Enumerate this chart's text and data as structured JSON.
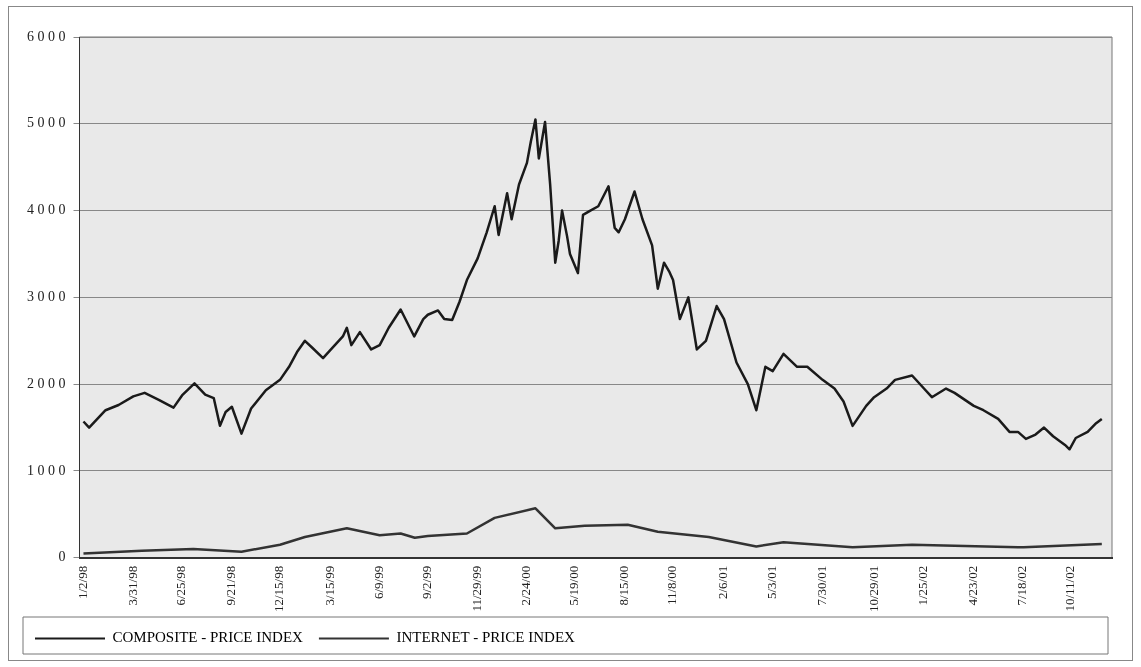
{
  "chart_data": {
    "type": "line",
    "ylim": [
      0,
      6000
    ],
    "yticks": [
      0,
      1000,
      2000,
      3000,
      4000,
      5000,
      6000
    ],
    "xlim": [
      "1997-12-26",
      "2002-12-23"
    ],
    "xticks": [
      {
        "value": "1998-01-02",
        "label": "1/2/98"
      },
      {
        "value": "1998-03-31",
        "label": "3/31/98"
      },
      {
        "value": "1998-06-25",
        "label": "6/25/98"
      },
      {
        "value": "1998-09-21",
        "label": "9/21/98"
      },
      {
        "value": "1998-12-15",
        "label": "12/15/98"
      },
      {
        "value": "1999-03-15",
        "label": "3/15/99"
      },
      {
        "value": "1999-06-09",
        "label": "6/9/99"
      },
      {
        "value": "1999-09-02",
        "label": "9/2/99"
      },
      {
        "value": "1999-11-29",
        "label": "11/29/99"
      },
      {
        "value": "2000-02-24",
        "label": "2/24/00"
      },
      {
        "value": "2000-05-19",
        "label": "5/19/00"
      },
      {
        "value": "2000-08-15",
        "label": "8/15/00"
      },
      {
        "value": "2000-11-08",
        "label": "11/8/00"
      },
      {
        "value": "2001-02-06",
        "label": "2/6/01"
      },
      {
        "value": "2001-05-03",
        "label": "5/3/01"
      },
      {
        "value": "2001-07-30",
        "label": "7/30/01"
      },
      {
        "value": "2001-10-29",
        "label": "10/29/01"
      },
      {
        "value": "2002-01-25",
        "label": "1/25/02"
      },
      {
        "value": "2002-04-23",
        "label": "4/23/02"
      },
      {
        "value": "2002-07-18",
        "label": "7/18/02"
      },
      {
        "value": "2002-10-11",
        "label": "10/11/02"
      }
    ],
    "grid": "y",
    "legend": "bottom",
    "marker": "none",
    "line_style": "solid",
    "series": [
      {
        "name": "COMPOSITE - PRICE INDEX",
        "color": "#1a1a1a",
        "x": [
          "1998-01-02",
          "1998-01-12",
          "1998-02-10",
          "1998-03-05",
          "1998-03-31",
          "1998-04-20",
          "1998-05-15",
          "1998-06-10",
          "1998-06-25",
          "1998-07-17",
          "1998-08-05",
          "1998-08-20",
          "1998-08-31",
          "1998-09-10",
          "1998-09-21",
          "1998-10-08",
          "1998-10-25",
          "1998-11-20",
          "1998-12-15",
          "1998-12-31",
          "1999-01-15",
          "1999-01-28",
          "1999-02-10",
          "1999-03-01",
          "1999-03-15",
          "1999-04-05",
          "1999-04-12",
          "1999-04-20",
          "1999-05-05",
          "1999-05-25",
          "1999-06-09",
          "1999-06-25",
          "1999-07-16",
          "1999-08-09",
          "1999-08-25",
          "1999-09-02",
          "1999-09-20",
          "1999-10-01",
          "1999-10-15",
          "1999-10-28",
          "1999-11-10",
          "1999-11-29",
          "1999-12-15",
          "1999-12-29",
          "2000-01-05",
          "2000-01-20",
          "2000-01-28",
          "2000-02-10",
          "2000-02-24",
          "2000-03-02",
          "2000-03-10",
          "2000-03-16",
          "2000-03-27",
          "2000-04-05",
          "2000-04-14",
          "2000-04-20",
          "2000-04-26",
          "2000-05-05",
          "2000-05-10",
          "2000-05-24",
          "2000-06-02",
          "2000-06-15",
          "2000-06-29",
          "2000-07-17",
          "2000-07-28",
          "2000-08-04",
          "2000-08-15",
          "2000-09-01",
          "2000-09-15",
          "2000-10-02",
          "2000-10-12",
          "2000-10-23",
          "2000-11-01",
          "2000-11-08",
          "2000-11-20",
          "2000-12-05",
          "2000-12-20",
          "2001-01-05",
          "2001-01-24",
          "2001-02-06",
          "2001-02-28",
          "2001-03-20",
          "2001-04-04",
          "2001-04-20",
          "2001-05-03",
          "2001-05-22",
          "2001-06-15",
          "2001-07-03",
          "2001-07-30",
          "2001-08-20",
          "2001-09-05",
          "2001-09-21",
          "2001-10-15",
          "2001-10-29",
          "2001-11-20",
          "2001-12-05",
          "2002-01-04",
          "2002-01-25",
          "2002-02-08",
          "2002-03-05",
          "2002-03-20",
          "2002-04-23",
          "2002-05-10",
          "2002-06-05",
          "2002-06-25",
          "2002-07-10",
          "2002-07-24",
          "2002-08-10",
          "2002-08-25",
          "2002-09-10",
          "2002-10-01",
          "2002-10-09",
          "2002-10-20",
          "2002-11-10",
          "2002-11-25",
          "2002-12-05"
        ],
        "values": [
          1570,
          1500,
          1700,
          1760,
          1860,
          1900,
          1820,
          1730,
          1870,
          2010,
          1880,
          1840,
          1520,
          1680,
          1740,
          1430,
          1720,
          1930,
          2050,
          2200,
          2380,
          2500,
          2420,
          2300,
          2400,
          2550,
          2650,
          2450,
          2600,
          2400,
          2450,
          2650,
          2860,
          2550,
          2750,
          2800,
          2850,
          2750,
          2740,
          2950,
          3200,
          3450,
          3750,
          4050,
          3720,
          4200,
          3900,
          4300,
          4550,
          4800,
          5050,
          4600,
          5020,
          4300,
          3400,
          3650,
          4000,
          3700,
          3500,
          3280,
          3950,
          4000,
          4050,
          4280,
          3800,
          3750,
          3900,
          4220,
          3900,
          3600,
          3100,
          3400,
          3300,
          3200,
          2750,
          3000,
          2400,
          2500,
          2900,
          2750,
          2250,
          2000,
          1700,
          2200,
          2150,
          2350,
          2200,
          2200,
          2050,
          1950,
          1800,
          1520,
          1750,
          1850,
          1950,
          2050,
          2100,
          1950,
          1850,
          1950,
          1900,
          1750,
          1700,
          1600,
          1450,
          1450,
          1370,
          1420,
          1500,
          1400,
          1300,
          1250,
          1380,
          1450,
          1550,
          1600
        ]
      },
      {
        "name": "INTERNET - PRICE INDEX",
        "color": "#333333",
        "x": [
          "1998-01-02",
          "1998-04-15",
          "1998-07-15",
          "1998-10-08",
          "1998-12-15",
          "1999-01-28",
          "1999-04-12",
          "1999-06-09",
          "1999-07-16",
          "1999-08-10",
          "1999-09-02",
          "1999-11-10",
          "1999-12-29",
          "2000-03-10",
          "2000-04-14",
          "2000-06-05",
          "2000-08-20",
          "2000-10-12",
          "2001-01-10",
          "2001-04-04",
          "2001-05-22",
          "2001-09-21",
          "2002-01-04",
          "2002-07-20",
          "2002-12-05"
        ],
        "values": [
          50,
          80,
          100,
          70,
          150,
          240,
          340,
          260,
          280,
          230,
          250,
          280,
          460,
          570,
          340,
          370,
          380,
          300,
          240,
          130,
          180,
          120,
          150,
          120,
          160
        ]
      }
    ]
  }
}
